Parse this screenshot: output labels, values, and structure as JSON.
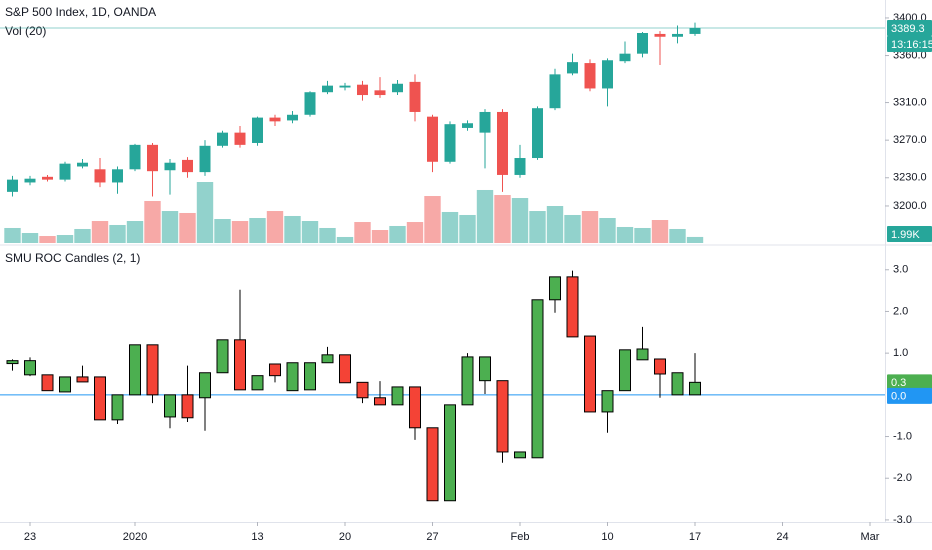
{
  "chart_data": [
    {
      "type": "candlestick",
      "title": "S&P 500 Index, 1D, OANDA",
      "categories": [
        null,
        "23",
        null,
        null,
        null,
        null,
        null,
        "2020",
        null,
        null,
        null,
        null,
        null,
        null,
        "13",
        null,
        null,
        null,
        null,
        "20",
        null,
        null,
        null,
        null,
        "27",
        null,
        null,
        null,
        null,
        "Feb",
        null,
        null,
        null,
        null,
        "10",
        null,
        null,
        null,
        null,
        "17",
        null,
        null,
        null,
        null,
        "24",
        null,
        null,
        null,
        null,
        "Mar"
      ],
      "open": [
        3215,
        3225,
        3231,
        3228,
        3242,
        3239,
        3225,
        3239,
        3265,
        3238,
        3249,
        3236,
        3264,
        3278,
        3267,
        3294,
        3291,
        3297,
        3321,
        3326,
        3329,
        3323,
        3321,
        3332,
        3295,
        3247,
        3283,
        3278,
        3300,
        3233,
        3251,
        3304,
        3341,
        3352,
        3325,
        3354,
        3362,
        3383,
        3380,
        3383,
        null,
        null,
        null,
        null,
        null,
        null,
        null,
        null,
        null,
        null
      ],
      "high": [
        3232,
        3232,
        3233,
        3247,
        3250,
        3251,
        3242,
        3266,
        3267,
        3250,
        3252,
        3270,
        3280,
        3285,
        3295,
        3297,
        3301,
        3322,
        3333,
        3331,
        3333,
        3337,
        3334,
        3340,
        3297,
        3290,
        3291,
        3303,
        3303,
        3265,
        3306,
        3346,
        3362,
        3356,
        3357,
        3375,
        3385,
        3386,
        3392,
        3395,
        null,
        null,
        null,
        null,
        null,
        null,
        null,
        null,
        null,
        null
      ],
      "low": [
        3210,
        3222,
        3226,
        3226,
        3240,
        3220,
        3213,
        3237,
        3210,
        3212,
        3230,
        3232,
        3262,
        3262,
        3264,
        3285,
        3288,
        3295,
        3319,
        3323,
        3312,
        3315,
        3318,
        3290,
        3236,
        3245,
        3280,
        3240,
        3215,
        3230,
        3249,
        3302,
        3339,
        3322,
        3306,
        3352,
        3358,
        3350,
        3373,
        3381,
        null,
        null,
        null,
        null,
        null,
        null,
        null,
        null,
        null,
        null
      ],
      "close": [
        3228,
        3229,
        3228,
        3245,
        3246,
        3225,
        3239,
        3265,
        3237,
        3246,
        3236,
        3264,
        3278,
        3265,
        3294,
        3290,
        3297,
        3321,
        3328,
        3328,
        3318,
        3318,
        3330,
        3300,
        3247,
        3287,
        3288,
        3300,
        3233,
        3251,
        3304,
        3340,
        3353,
        3325,
        3355,
        3362,
        3384,
        3380,
        3383,
        3389.3,
        null,
        null,
        null,
        null,
        null,
        null,
        null,
        null,
        null,
        null
      ],
      "up_color": "#26a69a",
      "down_color": "#ef5350",
      "ylim": [
        3160.6,
        3419.1
      ],
      "yticks": [
        {
          "value": 3200,
          "label": "3200.0"
        },
        {
          "value": 3230,
          "label": "3230.0"
        },
        {
          "value": 3270,
          "label": "3270.0"
        },
        {
          "value": 3310,
          "label": "3310.0"
        },
        {
          "value": 3360,
          "label": "3360.0"
        },
        {
          "value": 3400,
          "label": "3400.0"
        }
      ],
      "countdown": "13:16:15",
      "volume": {
        "name": "Vol (20)",
        "ylim": [
          0,
          80000
        ],
        "last_label": "1.99K",
        "values": [
          4940,
          3290,
          2300,
          2630,
          4610,
          7240,
          5930,
          7240,
          13830,
          10530,
          9880,
          20080,
          7900,
          7240,
          8230,
          10530,
          8890,
          7240,
          4940,
          1980,
          6910,
          4280,
          5600,
          6910,
          15470,
          10210,
          9220,
          17450,
          15800,
          14810,
          10530,
          12180,
          9220,
          10530,
          8230,
          5270,
          4940,
          7570,
          4610,
          1990,
          null,
          null,
          null,
          null,
          null,
          null,
          null,
          null,
          null,
          null
        ]
      }
    },
    {
      "type": "candlestick",
      "title": "SMU ROC Candles (2, 1)",
      "open": [
        0.75,
        0.48,
        0.48,
        0.07,
        0.43,
        0.43,
        -0.6,
        0,
        1.2,
        -0.53,
        0,
        -0.07,
        0.53,
        1.32,
        0.12,
        0.74,
        0.1,
        0.12,
        0.77,
        0.96,
        0.3,
        -0.07,
        -0.24,
        0.19,
        -0.79,
        -2.54,
        -0.24,
        0.34,
        0.34,
        -1.51,
        -1.51,
        2.28,
        2.83,
        1.41,
        -0.41,
        0.1,
        0.84,
        0.86,
        0,
        0,
        null,
        null,
        null,
        null,
        null,
        null,
        null,
        null,
        null,
        null
      ],
      "high": [
        0.85,
        0.9,
        0.48,
        0.43,
        0.7,
        0.43,
        0,
        1.2,
        1.2,
        0,
        0.7,
        0.53,
        1.32,
        2.52,
        0.46,
        0.74,
        0.77,
        0.77,
        1.15,
        0.96,
        0.3,
        0.33,
        0.19,
        0.19,
        -0.79,
        -0.24,
        1.0,
        0.91,
        0.34,
        -1.37,
        2.28,
        2.83,
        2.98,
        1.41,
        0.1,
        1.08,
        1.63,
        0.86,
        0.53,
        1.0,
        null,
        null,
        null,
        null,
        null,
        null,
        null,
        null,
        null,
        null
      ],
      "low": [
        0.58,
        0.45,
        0.1,
        0.07,
        0.31,
        -0.6,
        -0.7,
        0,
        -0.2,
        -0.8,
        -0.65,
        -0.86,
        0.53,
        0.12,
        0.12,
        0.3,
        0.1,
        0.12,
        0.77,
        0.29,
        -0.2,
        -0.24,
        -0.24,
        -1.08,
        -2.54,
        -2.54,
        -0.24,
        0.02,
        -1.63,
        -1.51,
        -1.51,
        1.97,
        1.39,
        -0.41,
        -0.91,
        0.1,
        0.84,
        -0.07,
        0,
        0,
        null,
        null,
        null,
        null,
        null,
        null,
        null,
        null,
        null,
        null
      ],
      "close": [
        0.82,
        0.82,
        0.1,
        0.43,
        0.31,
        -0.6,
        0,
        1.2,
        0,
        0,
        -0.55,
        0.53,
        1.32,
        0.12,
        0.46,
        0.46,
        0.77,
        0.77,
        0.96,
        0.29,
        -0.07,
        -0.24,
        0.19,
        -0.79,
        -2.54,
        -0.24,
        0.91,
        0.91,
        -1.37,
        -1.37,
        2.28,
        2.83,
        1.39,
        -0.41,
        0.1,
        1.08,
        1.1,
        0.5,
        0.53,
        0.3,
        null,
        null,
        null,
        null,
        null,
        null,
        null,
        null,
        null,
        null
      ],
      "up_color": "#4caf50",
      "down_color": "#f44336",
      "outline": "#000000",
      "ylim": [
        -3.05,
        3.57
      ],
      "yticks": [
        {
          "value": -3,
          "label": "-3.0"
        },
        {
          "value": -2,
          "label": "-2.0"
        },
        {
          "value": -1,
          "label": "-1.0"
        },
        {
          "value": 1,
          "label": "1.0"
        },
        {
          "value": 2,
          "label": "2.0"
        },
        {
          "value": 3,
          "label": "3.0"
        }
      ],
      "zero_line": {
        "value": 0,
        "label": "0.0",
        "color": "#2196f3"
      }
    }
  ]
}
